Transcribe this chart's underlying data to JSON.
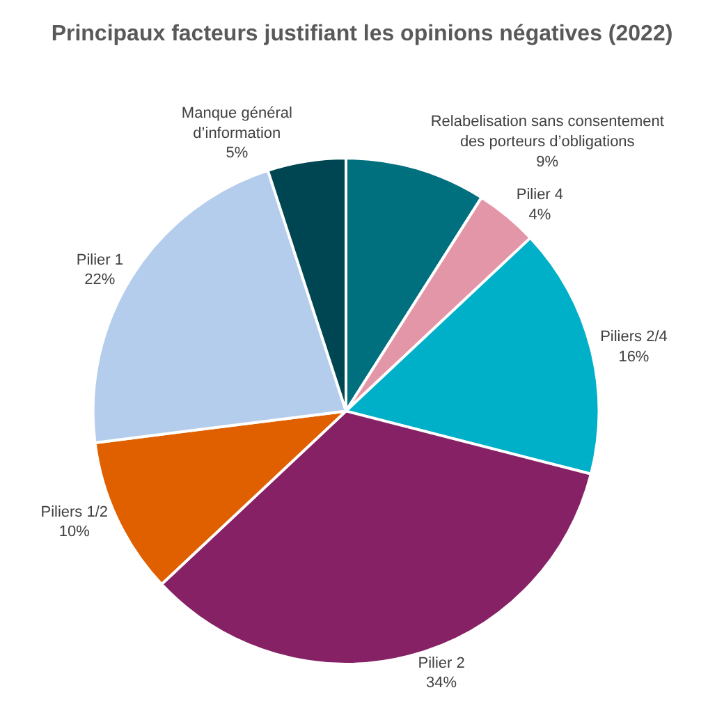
{
  "chart_data": {
    "type": "pie",
    "title": "Principaux facteurs justifiant les opinions négatives (2022)",
    "categories": [
      "Relabelisation sans consentement\ndes porteurs d’obligations",
      "Pilier 4",
      "Piliers 2/4",
      "Pilier 2",
      "Piliers 1/2",
      "Pilier 1",
      "Manque général\nd’information"
    ],
    "values": [
      9,
      4,
      16,
      34,
      10,
      22,
      5
    ],
    "value_labels": [
      "9%",
      "4%",
      "16%",
      "34%",
      "10%",
      "22%",
      "5%"
    ],
    "colors": [
      "#00707f",
      "#e396a8",
      "#00afc8",
      "#862165",
      "#e06000",
      "#b4cdec",
      "#004652"
    ],
    "legend": false
  }
}
